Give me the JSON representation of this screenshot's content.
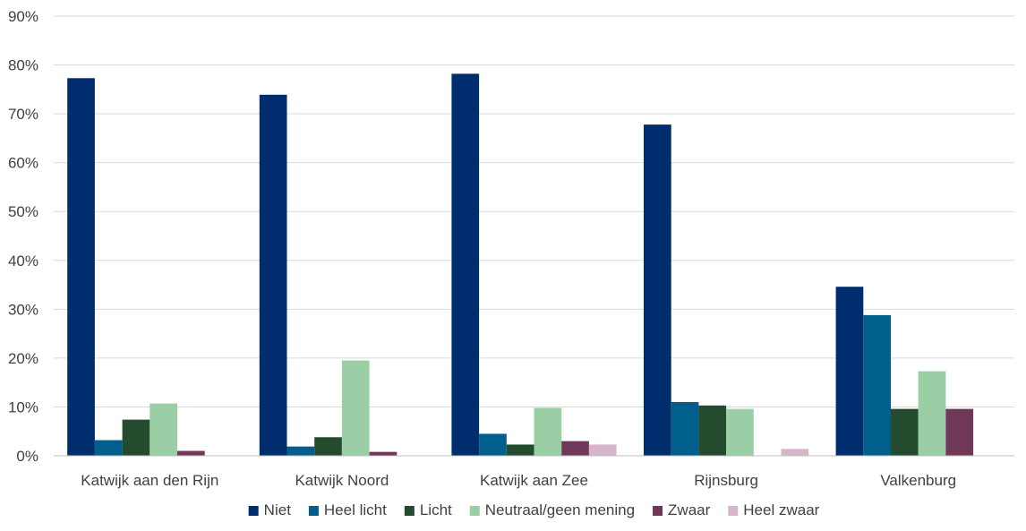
{
  "chart_data": {
    "type": "bar",
    "title": "",
    "xlabel": "",
    "ylabel": "",
    "ylim": [
      0,
      90
    ],
    "y_ticks": [
      "0%",
      "10%",
      "20%",
      "30%",
      "40%",
      "50%",
      "60%",
      "70%",
      "80%",
      "90%"
    ],
    "y_tick_values": [
      0,
      10,
      20,
      30,
      40,
      50,
      60,
      70,
      80,
      90
    ],
    "grid": true,
    "legend_position": "bottom",
    "categories": [
      "Katwijk aan den Rijn",
      "Katwijk Noord",
      "Katwijk aan Zee",
      "Rijnsburg",
      "Valkenburg"
    ],
    "series": [
      {
        "name": "Niet",
        "color": "#002D6E",
        "values": [
          77.3,
          73.9,
          78.2,
          67.8,
          34.6
        ]
      },
      {
        "name": "Heel licht",
        "color": "#005F8C",
        "values": [
          3.2,
          1.9,
          4.5,
          11.0,
          28.8
        ]
      },
      {
        "name": "Licht",
        "color": "#244B2E",
        "values": [
          7.4,
          3.8,
          2.3,
          10.3,
          9.6
        ]
      },
      {
        "name": "Neutraal/geen mening",
        "color": "#9ACFA5",
        "values": [
          10.7,
          19.5,
          9.8,
          9.6,
          17.3
        ]
      },
      {
        "name": "Zwaar",
        "color": "#6F3758",
        "values": [
          1.0,
          0.8,
          3.0,
          0,
          9.6
        ]
      },
      {
        "name": "Heel zwaar",
        "color": "#D8B4CB",
        "values": [
          0,
          0,
          2.3,
          1.4,
          0
        ]
      }
    ]
  }
}
